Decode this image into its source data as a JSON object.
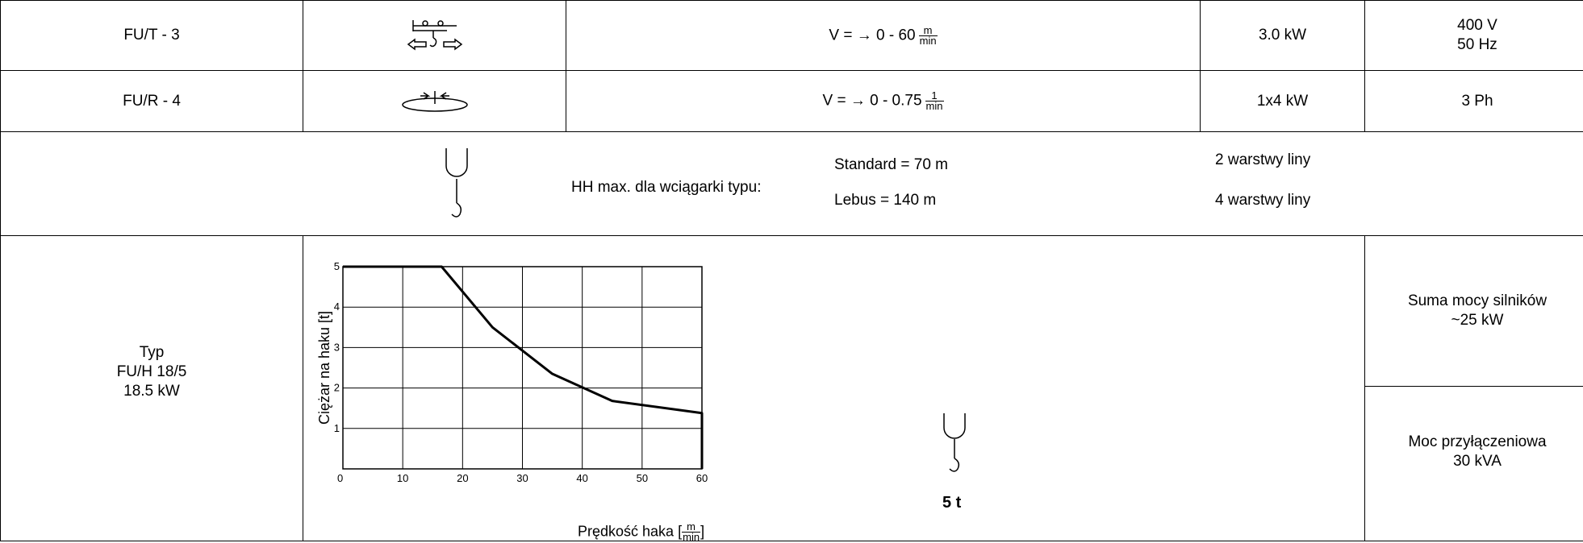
{
  "row1": {
    "type": "FU/T - 3",
    "icon": "trolley-travel-icon",
    "speed_prefix": "V = → 0 - 60",
    "speed_unit_num": "m",
    "speed_unit_den": "min",
    "power": "3.0 kW",
    "voltage": "400 V",
    "frequency": "50 Hz"
  },
  "row2": {
    "type": "FU/R - 4",
    "icon": "rotation-icon",
    "speed_prefix": "V = → 0 - 0.75",
    "speed_unit_num": "1",
    "speed_unit_den": "min",
    "power": "1x4 kW",
    "phase": "3 Ph"
  },
  "row3": {
    "icon": "hook-icon",
    "label": "HH max. dla wciągarki typu:",
    "standard": "Standard = 70 m",
    "lebus": "Lebus = 140 m",
    "standard_layers": "2 warstwy liny",
    "lebus_layers": "4 warstwy liny"
  },
  "row4": {
    "type_label": "Typ",
    "type_name": "FU/H 18/5",
    "type_power": "18.5 kW",
    "hook_capacity": "5 t",
    "total_power_label": "Suma mocy silników",
    "total_power_value": "~25 kW",
    "connection_label": "Moc przyłączeniowa",
    "connection_value": "30 kVA"
  },
  "chart_data": {
    "type": "line",
    "ylabel": "Ciężar na haku [t]",
    "xlabel": "Prędkość haka",
    "xlabel_unit_num": "m",
    "xlabel_unit_den": "min",
    "xlim": [
      0,
      60
    ],
    "ylim": [
      0,
      5
    ],
    "x_ticks": [
      "0",
      "10",
      "20",
      "30",
      "40",
      "50",
      "60"
    ],
    "y_ticks": [
      "1",
      "2",
      "3",
      "4",
      "5"
    ],
    "grid": true,
    "x": [
      0,
      16.5,
      25,
      35,
      45,
      60,
      60
    ],
    "y": [
      5,
      5,
      3.5,
      2.35,
      1.68,
      1.38,
      0
    ]
  }
}
